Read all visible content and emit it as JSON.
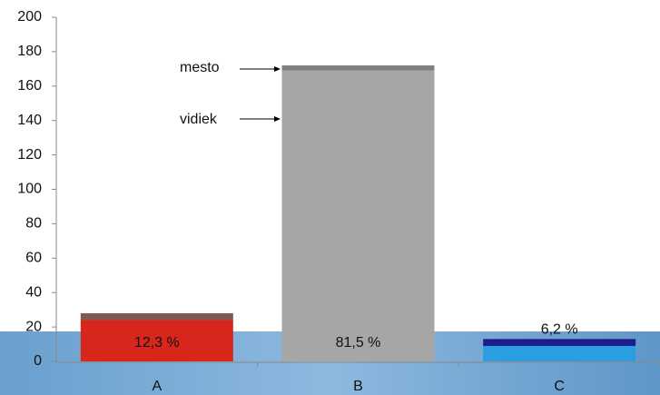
{
  "chart_data": {
    "type": "stacked_bar",
    "categories": [
      "A",
      "B",
      "C"
    ],
    "series": [
      {
        "name": "vidiek",
        "values": [
          24,
          169,
          9
        ],
        "colors": [
          "#d9261c",
          "#a6a6a6",
          "#2a9ee0"
        ]
      },
      {
        "name": "mesto",
        "values": [
          4,
          3,
          4
        ],
        "colors": [
          "#7f5a50",
          "#7f7f7f",
          "#1c1c8c"
        ]
      }
    ],
    "bar_labels": [
      "12,3 %",
      "81,5 %",
      "6,2 %"
    ],
    "ylim": [
      0,
      200
    ],
    "yticks": [
      0,
      20,
      40,
      60,
      80,
      100,
      120,
      140,
      160,
      180,
      200
    ]
  }
}
